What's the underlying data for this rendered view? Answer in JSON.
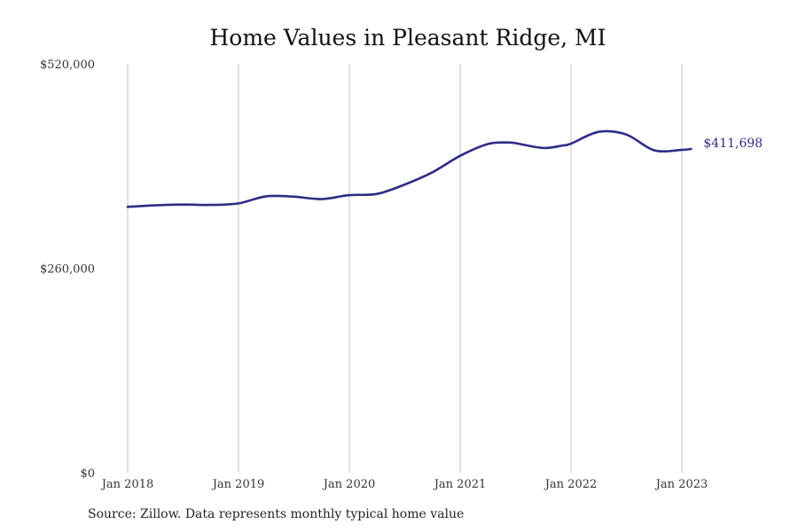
{
  "chart_data": {
    "type": "line",
    "title": "Home Values in Pleasant Ridge, MI",
    "xlabel": "",
    "ylabel": "",
    "x_ticks": [
      "Jan 2018",
      "Jan 2019",
      "Jan 2020",
      "Jan 2021",
      "Jan 2022",
      "Jan 2023"
    ],
    "y_ticks": [
      "$0",
      "$260,000",
      "$520,000"
    ],
    "y_tick_values": [
      0,
      260000,
      520000
    ],
    "ylim": [
      0,
      520000
    ],
    "xlim": [
      2018.0,
      2023.5
    ],
    "grid": "vertical lines at x ticks",
    "line_color": "#2e2c85",
    "series": [
      {
        "x": [
          2018.0,
          2018.25,
          2018.5,
          2018.75,
          2019.0,
          2019.25,
          2019.5,
          2019.75,
          2020.0,
          2020.25,
          2020.5,
          2020.75,
          2021.0,
          2021.25,
          2021.42,
          2021.5,
          2021.75,
          2021.92,
          2022.0,
          2022.25,
          2022.5,
          2022.75,
          2023.0,
          2023.083
        ],
        "values": [
          338000,
          340000,
          341000,
          340500,
          342500,
          351500,
          351000,
          348000,
          353000,
          354500,
          366500,
          382000,
          403000,
          418000,
          420000,
          419000,
          413000,
          416000,
          418500,
          433500,
          430000,
          410000,
          410500,
          411698
        ]
      }
    ],
    "end_label": "$411,698"
  },
  "source_text": "Source: Zillow. Data represents monthly typical home value"
}
